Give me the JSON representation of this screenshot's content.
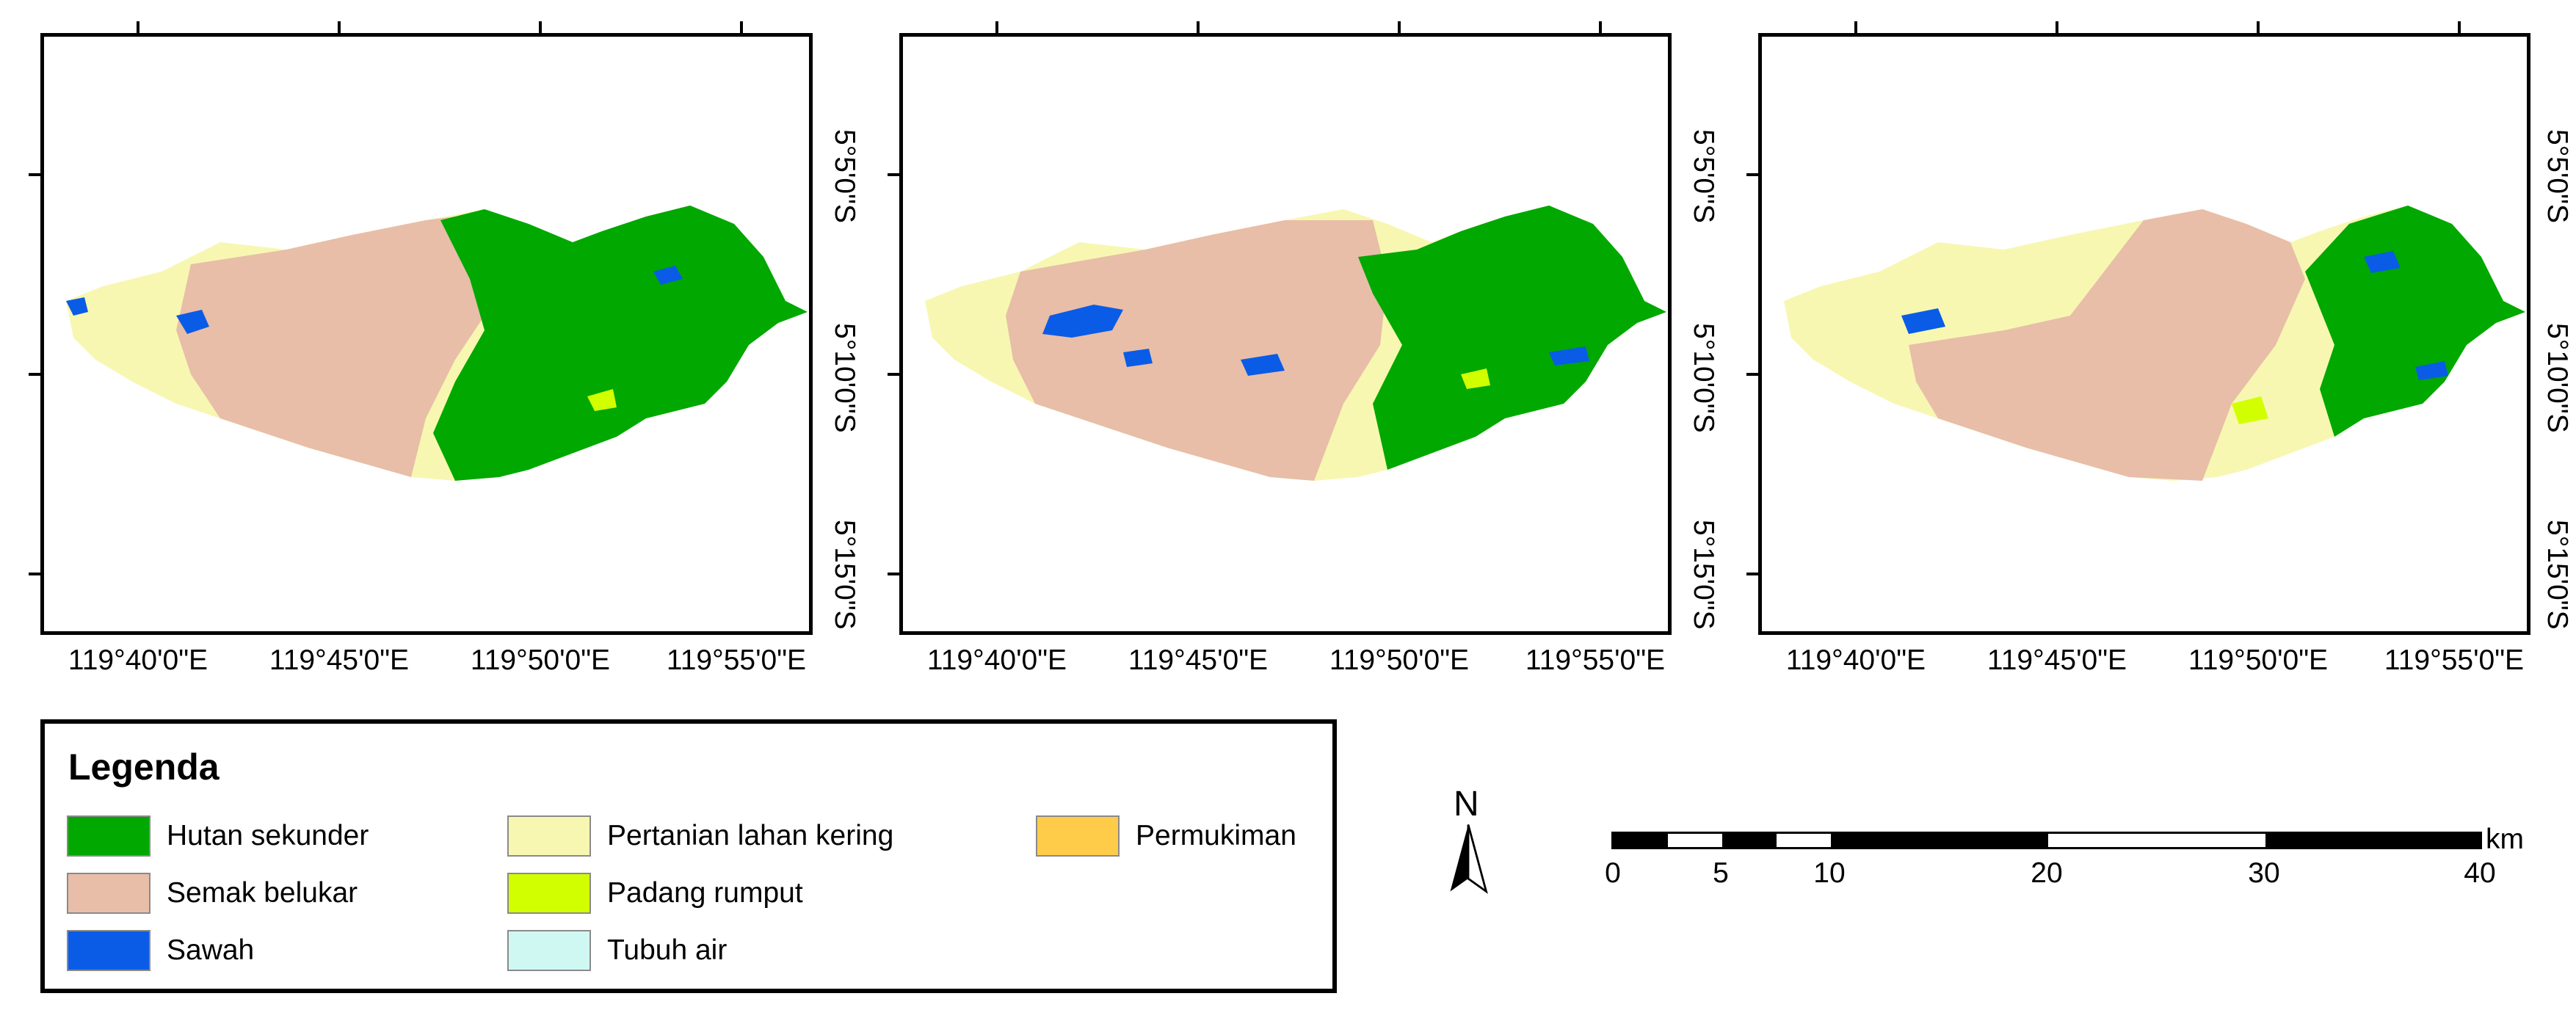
{
  "maps": [
    {
      "id": "map-1",
      "x_labels": [
        "119°40'0\"E",
        "119°45'0\"E",
        "119°50'0\"E",
        "119°55'0\"E"
      ]
    },
    {
      "id": "map-2",
      "x_labels": [
        "119°40'0\"E",
        "119°45'0\"E",
        "119°50'0\"E",
        "119°55'0\"E"
      ]
    },
    {
      "id": "map-3",
      "x_labels": [
        "119°40'0\"E",
        "119°45'0\"E",
        "119°50'0\"E",
        "119°55'0\"E"
      ]
    }
  ],
  "y_labels": [
    "5°5'0\"S",
    "5°10'0\"S",
    "5°15'0\"S",
    "5°15'0\"S"
  ],
  "legend": {
    "title": "Legenda",
    "items": [
      {
        "label": "Hutan sekunder",
        "color": "#00a800"
      },
      {
        "label": "Semak belukar",
        "color": "#e8bea8"
      },
      {
        "label": "Sawah",
        "color": "#0a5ce6"
      },
      {
        "label": "Pertanian lahan kering",
        "color": "#f7f7b2"
      },
      {
        "label": "Padang rumput",
        "color": "#d2ff00"
      },
      {
        "label": "Tubuh air",
        "color": "#d0f8f3"
      },
      {
        "label": "Permukiman",
        "color": "#ffcc4a"
      }
    ]
  },
  "north_arrow": {
    "label": "N"
  },
  "scale_bar": {
    "labels": [
      "0",
      "5",
      "10",
      "20",
      "30",
      "40"
    ],
    "unit": "km"
  }
}
